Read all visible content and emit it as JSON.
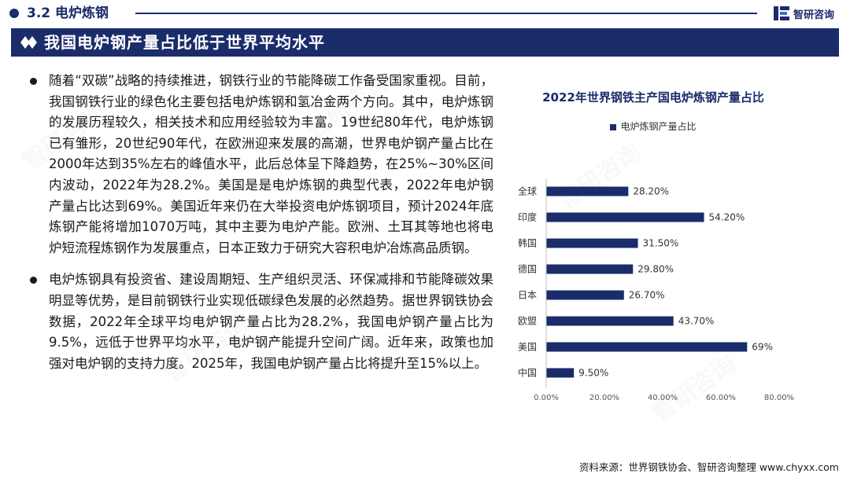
{
  "section": {
    "title": "3.2  电炉炼钢"
  },
  "brand": {
    "name": "智研咨询",
    "color": "#1b2c6b"
  },
  "banner": {
    "title": "我国电炉钢产量占比低于世界平均水平",
    "icon": "double-diamond-icon"
  },
  "paragraphs": [
    "随着“双碳”战略的持续推进，钢铁行业的节能降碳工作备受国家重视。目前，我国钢铁行业的绿色化主要包括电炉炼钢和氢冶金两个方向。其中，电炉炼钢的发展历程较久，相关技术和应用经验较为丰富。19世纪80年代，电炉炼钢已有雏形，20世纪90年代，在欧洲迎来发展的高潮，世界电炉钢产量占比在2000年达到35%左右的峰值水平，此后总体呈下降趋势，在25%~30%区间内波动，2022年为28.2%。美国是是电炉炼钢的典型代表，2022年电炉钢产量占比达到69%。美国近年来仍在大举投资电炉炼钢项目，预计2024年底炼钢产能将增加1070万吨，其中主要为电炉产能。欧洲、土耳其等地也将电炉短流程炼钢作为发展重点，日本正致力于研究大容积电炉冶炼高品质钢。",
    "电炉炼钢具有投资省、建设周期短、生产组织灵活、环保减排和节能降碳效果明显等优势，是目前钢铁行业实现低碳绿色发展的必然趋势。据世界钢铁协会数据，2022年全球平均电炉钢产量占比为28.2%，我国电炉钢产量占比为9.5%，远低于世界平均水平，电炉钢产能提升空间广阔。近年来，政策也加强对电炉钢的支持力度。2025年，我国电炉钢产量占比将提升至15%以上。"
  ],
  "chart_data": {
    "type": "bar",
    "orientation": "horizontal",
    "title": "2022年世界钢铁主产国电炉炼钢产量占比",
    "legend_position": "top",
    "categories": [
      "全球",
      "印度",
      "韩国",
      "德国",
      "日本",
      "欧盟",
      "美国",
      "中国"
    ],
    "series": [
      {
        "name": "电炉炼钢产量占比",
        "values": [
          28.2,
          54.2,
          31.5,
          29.8,
          26.7,
          43.7,
          69,
          9.5
        ],
        "labels": [
          "28.20%",
          "54.20%",
          "31.50%",
          "29.80%",
          "26.70%",
          "43.70%",
          "69%",
          "9.50%"
        ],
        "color": "#1b2c6b"
      }
    ],
    "xlim": [
      0,
      80
    ],
    "xticks": [
      "0.00%",
      "20.00%",
      "40.00%",
      "60.00%",
      "80.00%"
    ],
    "grid": false
  },
  "source": "资料来源：世界钢铁协会、智研咨询整理  www.chyxx.com",
  "watermark": "智研咨询"
}
